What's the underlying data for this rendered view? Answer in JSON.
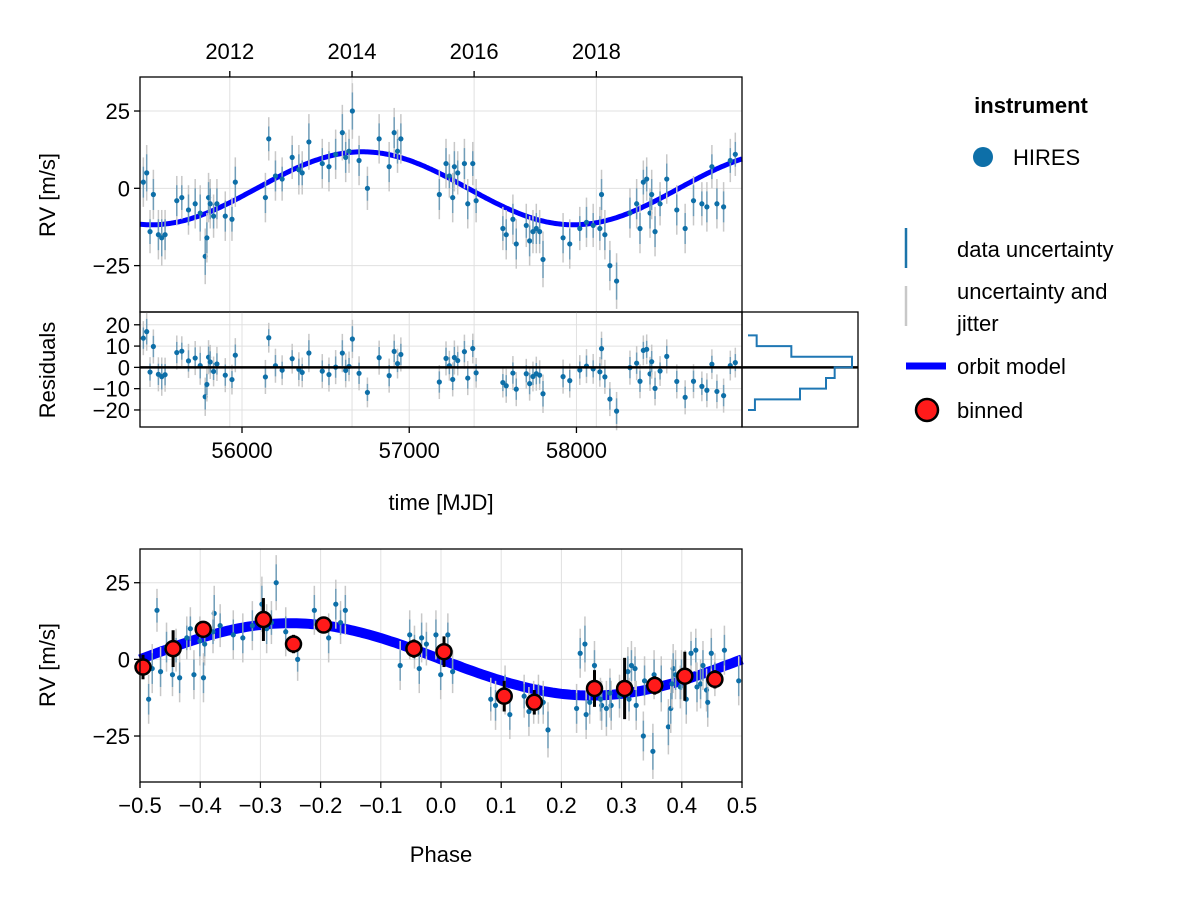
{
  "colors": {
    "data_point": "#0d6fa8",
    "data_uncertainty": "#1b74aa",
    "jitter": "#c8c8c8",
    "model": "#0000ff",
    "binned_fill": "#ff1a1a",
    "binned_edge": "#000000",
    "hist": "#1f77b4",
    "grid": "#e0e0e0"
  },
  "chart_data": [
    {
      "id": "rv_time",
      "type": "scatter",
      "title": "",
      "xlabel": "time [MJD]",
      "ylabel": "RV [m/s]",
      "xlim": [
        55390,
        58990
      ],
      "ylim": [
        -40,
        36
      ],
      "yticks": [
        -25,
        0,
        25
      ],
      "ytick_labels": [
        "−25",
        "0",
        "25"
      ],
      "top_axis": {
        "ticks_mjd": [
          55927,
          56658,
          57388,
          58119
        ],
        "tick_labels": [
          "2012",
          "2014",
          "2016",
          "2018"
        ]
      },
      "model": {
        "amplitude": 11.8,
        "period_days": 2525,
        "peak_mjd": 56720
      },
      "series": [
        {
          "name": "HIRES",
          "x": [
            55410,
            55430,
            55450,
            55470,
            55500,
            55520,
            55540,
            55610,
            55640,
            55680,
            55720,
            55750,
            55780,
            55790,
            55800,
            55810,
            55830,
            55850,
            55900,
            55940,
            55960,
            56140,
            56160,
            56200,
            56240,
            56300,
            56340,
            56360,
            56400,
            56480,
            56520,
            56560,
            56600,
            56620,
            56640,
            56660,
            56700,
            56750,
            56820,
            56880,
            56910,
            56930,
            56950,
            57180,
            57220,
            57240,
            57260,
            57270,
            57290,
            57330,
            57350,
            57380,
            57400,
            57560,
            57580,
            57620,
            57640,
            57700,
            57720,
            57740,
            57760,
            57780,
            57800,
            57920,
            57960,
            58020,
            58060,
            58100,
            58140,
            58150,
            58170,
            58200,
            58240,
            58320,
            58360,
            58380,
            58400,
            58420,
            58440,
            58450,
            58470,
            58500,
            58540,
            58600,
            58650,
            58700,
            58750,
            58780,
            58810,
            58840,
            58880,
            58920,
            58950
          ],
          "y": [
            2,
            5,
            -14,
            -2,
            -15,
            -16,
            -15,
            -4,
            -3,
            -7,
            -5,
            -8,
            -22,
            -16,
            -3,
            -5,
            -9,
            -5,
            -9,
            -10,
            2,
            -3,
            16,
            4,
            3,
            10,
            6,
            5,
            15,
            8,
            7,
            11,
            18,
            10,
            12,
            25,
            9,
            0,
            16,
            7,
            18,
            12,
            16,
            -2,
            8,
            4,
            -3,
            7,
            5,
            8,
            -5,
            8,
            -4,
            -13,
            -15,
            -10,
            -18,
            -12,
            -17,
            -14,
            -13,
            -14,
            -23,
            -16,
            -18,
            -13,
            -11,
            -12,
            -13,
            -2,
            -15,
            -25,
            -30,
            -8,
            -5,
            -13,
            2,
            3,
            -8,
            -2,
            -14,
            -5,
            3,
            -7,
            -13,
            -4,
            -5,
            -6,
            7,
            -5,
            -6,
            9,
            11
          ],
          "err": [
            5,
            6,
            4,
            5,
            5,
            6,
            5,
            5,
            4,
            5,
            5,
            6,
            6,
            5,
            5,
            5,
            4,
            5,
            5,
            4,
            5,
            5,
            4,
            5,
            4,
            4,
            5,
            4,
            6,
            5,
            5,
            5,
            6,
            5,
            4,
            6,
            5,
            4,
            5,
            5,
            5,
            4,
            5,
            5,
            5,
            4,
            5,
            5,
            4,
            5,
            5,
            4,
            4,
            4,
            5,
            5,
            5,
            4,
            5,
            4,
            5,
            4,
            6,
            5,
            5,
            4,
            5,
            4,
            4,
            5,
            5,
            5,
            6,
            5,
            5,
            5,
            4,
            4,
            5,
            5,
            5,
            4,
            5,
            5,
            5,
            5,
            4,
            5,
            4,
            5,
            5,
            4,
            4
          ],
          "jitter": [
            8,
            9,
            7,
            8,
            8,
            9,
            8,
            8,
            7,
            8,
            8,
            9,
            9,
            8,
            8,
            8,
            7,
            8,
            8,
            7,
            8,
            8,
            7,
            8,
            7,
            7,
            8,
            7,
            9,
            8,
            8,
            8,
            9,
            8,
            7,
            9,
            8,
            7,
            8,
            8,
            8,
            7,
            8,
            8,
            8,
            7,
            8,
            8,
            7,
            8,
            8,
            7,
            7,
            7,
            8,
            8,
            8,
            7,
            8,
            7,
            8,
            7,
            9,
            8,
            8,
            7,
            8,
            7,
            7,
            8,
            8,
            8,
            9,
            8,
            8,
            8,
            7,
            7,
            8,
            8,
            8,
            7,
            8,
            8,
            8,
            8,
            7,
            8,
            7,
            8,
            8,
            7,
            7
          ]
        }
      ]
    },
    {
      "id": "residuals",
      "type": "scatter",
      "xlabel": "time [MJD]",
      "ylabel": "Residuals",
      "xlim": [
        55390,
        58990
      ],
      "ylim": [
        -28,
        26
      ],
      "xticks": [
        56000,
        57000,
        58000
      ],
      "xtick_labels": [
        "56000",
        "57000",
        "58000"
      ],
      "yticks": [
        -20,
        -10,
        0,
        10,
        20
      ],
      "ytick_labels": [
        "−20",
        "−10",
        "0",
        "10",
        "20"
      ],
      "histogram": {
        "bin_edges": [
          -20,
          -15,
          -10,
          -5,
          0,
          5,
          10,
          15
        ],
        "counts": [
          4,
          30,
          45,
          50,
          60,
          25,
          5
        ]
      }
    },
    {
      "id": "rv_phase",
      "type": "scatter",
      "xlabel": "Phase",
      "ylabel": "RV [m/s]",
      "xlim": [
        -0.5,
        0.5
      ],
      "ylim": [
        -40,
        36
      ],
      "xticks": [
        -0.5,
        -0.4,
        -0.3,
        -0.2,
        -0.1,
        0.0,
        0.1,
        0.2,
        0.3,
        0.4,
        0.5
      ],
      "xtick_labels": [
        "−0.5",
        "−0.4",
        "−0.3",
        "−0.2",
        "−0.1",
        "0.0",
        "0.1",
        "0.2",
        "0.3",
        "0.4",
        "0.5"
      ],
      "yticks": [
        -25,
        0,
        25
      ],
      "ytick_labels": [
        "−25",
        "0",
        "25"
      ],
      "binned": {
        "name": "binned",
        "phase": [
          -0.495,
          -0.445,
          -0.395,
          -0.295,
          -0.245,
          -0.195,
          -0.045,
          0.005,
          0.105,
          0.155,
          0.255,
          0.305,
          0.355,
          0.405,
          0.455
        ],
        "rv": [
          -2.5,
          3.5,
          9.8,
          13,
          5,
          11.2,
          3.5,
          2.5,
          -12,
          -14,
          -9.5,
          -9.5,
          -8.5,
          -5.5,
          -6.5
        ],
        "err": [
          4,
          6,
          2,
          7,
          3,
          2,
          3,
          5,
          5,
          4,
          6,
          10,
          3,
          8,
          3
        ]
      }
    }
  ],
  "legend": {
    "title": "instrument",
    "instrument_label": "HIRES",
    "data_uncertainty_label": "data uncertainty",
    "jitter_label_line1": "uncertainty and",
    "jitter_label_line2": "jitter",
    "model_label": "orbit model",
    "binned_label": "binned"
  }
}
